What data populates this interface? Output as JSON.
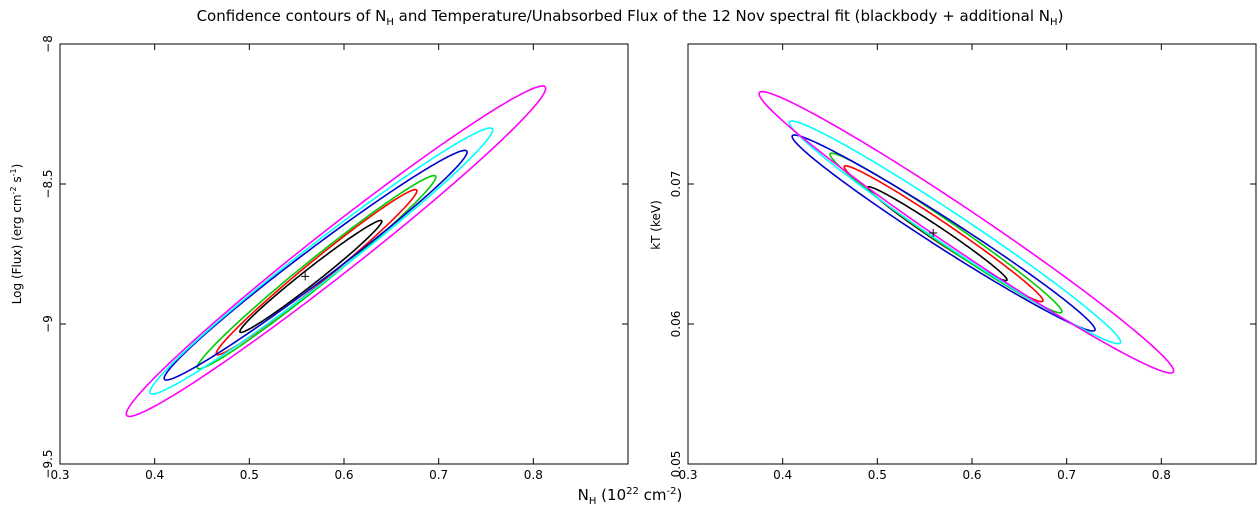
{
  "figure": {
    "title": {
      "p1": "Confidence contours of N",
      "sub1": "H",
      "p2": " and Temperature/Unabsorbed Flux of the 12 Nov spectral fit (blackbody + additional N",
      "sub2": "H",
      "p3": ")"
    },
    "xlabel": {
      "p1": "N",
      "sub1": "H",
      "p2": " (10",
      "sup1": "22",
      "p3": " cm",
      "sup2": "-2",
      "p4": ")"
    },
    "contour_colors": [
      "#000000",
      "#ff0000",
      "#00cc00",
      "#0000cc",
      "#00ffff",
      "#ff00ff"
    ]
  },
  "chart_data": [
    {
      "type": "contour",
      "ylabel": {
        "p1": "Log (Flux) (erg cm",
        "sup1": "-2",
        "p2": " s",
        "sup2": "-1",
        "p3": ")"
      },
      "xlim": [
        0.3,
        0.9
      ],
      "ylim": [
        -9.5,
        -8.0
      ],
      "x_ticks": [
        "0.3",
        "0.4",
        "0.5",
        "0.6",
        "0.7",
        "0.8"
      ],
      "x_tick_values": [
        0.3,
        0.4,
        0.5,
        0.6,
        0.7,
        0.8
      ],
      "y_ticks": [
        "−9.5",
        "−9",
        "−8.5",
        "−8"
      ],
      "y_tick_values": [
        -9.5,
        -9.0,
        -8.5,
        -8.0
      ],
      "best_fit": {
        "x": 0.559,
        "y": -8.83,
        "marker": "+"
      },
      "contours": [
        {
          "color": "#000000",
          "x_range": [
            0.49,
            0.64
          ],
          "y_range": [
            -9.03,
            -8.63
          ]
        },
        {
          "color": "#ff0000",
          "x_range": [
            0.465,
            0.677
          ],
          "y_range": [
            -9.11,
            -8.52
          ]
        },
        {
          "color": "#00cc00",
          "x_range": [
            0.445,
            0.697
          ],
          "y_range": [
            -9.16,
            -8.47
          ]
        },
        {
          "color": "#0000cc",
          "x_range": [
            0.41,
            0.73
          ],
          "y_range": [
            -9.2,
            -8.38
          ]
        },
        {
          "color": "#00ffff",
          "x_range": [
            0.395,
            0.757
          ],
          "y_range": [
            -9.25,
            -8.3
          ]
        },
        {
          "color": "#ff00ff",
          "x_range": [
            0.37,
            0.813
          ],
          "y_range": [
            -9.33,
            -8.15
          ]
        }
      ]
    },
    {
      "type": "contour",
      "ylabel": {
        "p1": "kT (keV)"
      },
      "xlim": [
        0.3,
        0.9
      ],
      "ylim": [
        0.05,
        0.08
      ],
      "x_ticks": [
        "0.3",
        "0.4",
        "0.5",
        "0.6",
        "0.7",
        "0.8"
      ],
      "x_tick_values": [
        0.3,
        0.4,
        0.5,
        0.6,
        0.7,
        0.8
      ],
      "y_ticks": [
        "0.05",
        "0.06",
        "0.07"
      ],
      "y_tick_values": [
        0.05,
        0.06,
        0.07
      ],
      "best_fit": {
        "x": 0.559,
        "y": 0.0665,
        "marker": "+"
      },
      "contours": [
        {
          "color": "#000000",
          "x_range": [
            0.49,
            0.637
          ],
          "y_range": [
            0.0631,
            0.0698
          ]
        },
        {
          "color": "#ff0000",
          "x_range": [
            0.465,
            0.675
          ],
          "y_range": [
            0.0616,
            0.0713
          ]
        },
        {
          "color": "#00cc00",
          "x_range": [
            0.45,
            0.695
          ],
          "y_range": [
            0.0608,
            0.0722
          ]
        },
        {
          "color": "#0000cc",
          "x_range": [
            0.41,
            0.73
          ],
          "y_range": [
            0.0595,
            0.0735
          ]
        },
        {
          "color": "#00ffff",
          "x_range": [
            0.407,
            0.757
          ],
          "y_range": [
            0.0586,
            0.0745
          ]
        },
        {
          "color": "#ff00ff",
          "x_range": [
            0.375,
            0.813
          ],
          "y_range": [
            0.0565,
            0.0766
          ]
        }
      ]
    }
  ]
}
